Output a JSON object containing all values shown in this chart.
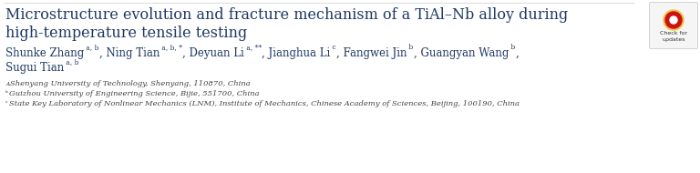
{
  "bg_color": "#ffffff",
  "title_line1": "Microstructure evolution and fracture mechanism of a TiAl–Nb alloy during",
  "title_line2": "high-temperature tensile testing",
  "title_color": "#1f3864",
  "title_fontsize": 11.5,
  "author_color": "#1f3864",
  "author_fontsize": 8.5,
  "sup_fontsize": 5.5,
  "affil_color": "#444444",
  "affil_fontsize": 6.0,
  "affil_a": "a Shenyang University of Technology, Shenyang, 110870, China",
  "affil_b": "b Guizhou University of Engineering Science, Bijie, 551700, China",
  "affil_c": "c State Key Laboratory of Nonlinear Mechanics (LNM), Institute of Mechanics, Chinese Academy of Sciences, Beijing, 100190, China",
  "separator_color": "#dddddd",
  "badge_box_color": "#f5f5f5",
  "badge_border_color": "#cccccc"
}
